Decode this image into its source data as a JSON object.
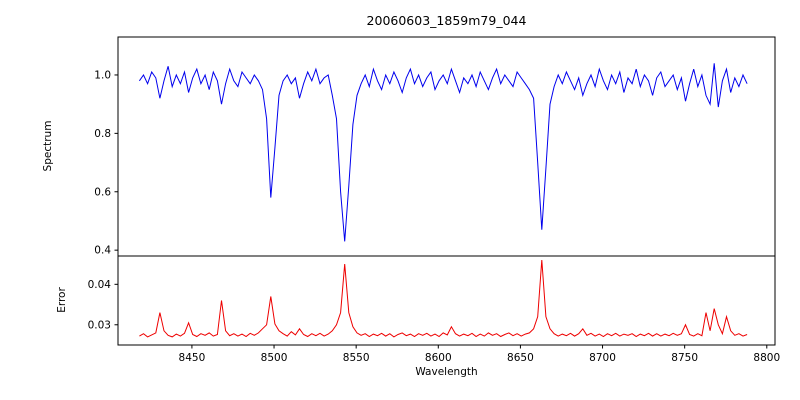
{
  "figure": {
    "title": "20060603_1859m79_044",
    "xlabel": "Wavelength",
    "background": "#ffffff",
    "axis_color": "#000000"
  },
  "chart_data": [
    {
      "type": "line",
      "name": "spectrum",
      "title": "20060603_1859m79_044",
      "ylabel": "Spectrum",
      "color": "#0000ee",
      "grid": false,
      "legend": "none",
      "xlim": [
        8405,
        8805
      ],
      "ylim": [
        0.38,
        1.13
      ],
      "yticks": [
        0.4,
        0.6,
        0.8,
        1.0
      ],
      "ytick_labels": [
        "0.4",
        "0.6",
        "0.8",
        "1.0"
      ],
      "x_start": 8418,
      "x_step": 2.5,
      "values": [
        0.98,
        1.0,
        0.97,
        1.01,
        0.99,
        0.92,
        0.98,
        1.03,
        0.96,
        1.0,
        0.97,
        1.01,
        0.94,
        0.99,
        1.02,
        0.97,
        1.0,
        0.95,
        1.01,
        0.98,
        0.9,
        0.97,
        1.02,
        0.98,
        0.96,
        1.01,
        0.99,
        0.97,
        1.0,
        0.98,
        0.95,
        0.85,
        0.58,
        0.75,
        0.93,
        0.98,
        1.0,
        0.97,
        0.99,
        0.92,
        0.97,
        1.01,
        0.98,
        1.02,
        0.97,
        0.99,
        1.0,
        0.93,
        0.85,
        0.6,
        0.43,
        0.62,
        0.83,
        0.93,
        0.97,
        1.0,
        0.96,
        1.02,
        0.98,
        0.95,
        1.0,
        0.97,
        1.01,
        0.98,
        0.94,
        0.99,
        1.02,
        0.97,
        1.0,
        0.96,
        0.99,
        1.01,
        0.95,
        0.98,
        1.0,
        0.97,
        1.02,
        0.98,
        0.94,
        0.99,
        0.97,
        1.0,
        0.96,
        1.01,
        0.98,
        0.95,
        0.99,
        1.02,
        0.97,
        1.0,
        0.98,
        0.96,
        1.01,
        0.99,
        0.97,
        0.95,
        0.92,
        0.7,
        0.47,
        0.68,
        0.9,
        0.96,
        1.0,
        0.97,
        1.01,
        0.98,
        0.95,
        0.99,
        0.93,
        0.97,
        1.0,
        0.96,
        1.02,
        0.98,
        0.95,
        1.0,
        0.97,
        1.01,
        0.94,
        0.99,
        0.97,
        1.02,
        0.96,
        1.0,
        0.98,
        0.93,
        0.99,
        1.01,
        0.96,
        0.98,
        1.0,
        0.95,
        0.99,
        0.91,
        0.97,
        1.02,
        0.96,
        1.0,
        0.93,
        0.9,
        1.04,
        0.89,
        0.98,
        1.02,
        0.94,
        0.99,
        0.96,
        1.0,
        0.97
      ],
      "absorption_lines": [
        {
          "wavelength": 8498,
          "min_flux": 0.58
        },
        {
          "wavelength": 8542,
          "min_flux": 0.43
        },
        {
          "wavelength": 8662,
          "min_flux": 0.47
        }
      ]
    },
    {
      "type": "line",
      "name": "error",
      "ylabel": "Error",
      "xlabel": "Wavelength",
      "color": "#ee0000",
      "grid": false,
      "legend": "none",
      "xlim": [
        8405,
        8805
      ],
      "ylim": [
        0.025,
        0.047
      ],
      "yticks": [
        0.03,
        0.04
      ],
      "ytick_labels": [
        "0.03",
        "0.04"
      ],
      "xticks": [
        8450,
        8500,
        8550,
        8600,
        8650,
        8700,
        8750,
        8800
      ],
      "xtick_labels": [
        "8450",
        "8500",
        "8550",
        "8600",
        "8650",
        "8700",
        "8750",
        "8800"
      ],
      "x_start": 8418,
      "x_step": 2.5,
      "values": [
        0.0272,
        0.0278,
        0.027,
        0.0275,
        0.028,
        0.033,
        0.0285,
        0.0274,
        0.027,
        0.0277,
        0.0272,
        0.0279,
        0.0305,
        0.0276,
        0.0271,
        0.0278,
        0.0274,
        0.028,
        0.0272,
        0.0276,
        0.036,
        0.0285,
        0.0273,
        0.0278,
        0.0272,
        0.0277,
        0.0271,
        0.0279,
        0.0274,
        0.028,
        0.029,
        0.03,
        0.037,
        0.0302,
        0.0285,
        0.0278,
        0.0272,
        0.0283,
        0.0275,
        0.029,
        0.0276,
        0.0271,
        0.0278,
        0.0273,
        0.0279,
        0.0272,
        0.0277,
        0.0285,
        0.03,
        0.033,
        0.045,
        0.033,
        0.0295,
        0.028,
        0.0274,
        0.0278,
        0.0271,
        0.0277,
        0.0273,
        0.0279,
        0.0272,
        0.0278,
        0.027,
        0.0276,
        0.028,
        0.0273,
        0.0277,
        0.0271,
        0.0278,
        0.0274,
        0.0279,
        0.0272,
        0.0277,
        0.0271,
        0.028,
        0.0275,
        0.0295,
        0.0278,
        0.0272,
        0.0277,
        0.0273,
        0.0279,
        0.0271,
        0.0277,
        0.0272,
        0.028,
        0.0274,
        0.0278,
        0.0271,
        0.0276,
        0.028,
        0.0273,
        0.0278,
        0.0272,
        0.0277,
        0.028,
        0.029,
        0.032,
        0.046,
        0.032,
        0.029,
        0.0278,
        0.0272,
        0.0277,
        0.0273,
        0.0279,
        0.0272,
        0.0278,
        0.029,
        0.0274,
        0.0279,
        0.0272,
        0.0277,
        0.0271,
        0.0278,
        0.0273,
        0.0279,
        0.0272,
        0.0277,
        0.0274,
        0.0278,
        0.0271,
        0.0277,
        0.0273,
        0.0279,
        0.0272,
        0.0278,
        0.0272,
        0.0277,
        0.0273,
        0.0279,
        0.0274,
        0.0278,
        0.03,
        0.0276,
        0.0272,
        0.0278,
        0.0273,
        0.033,
        0.0285,
        0.034,
        0.03,
        0.0278,
        0.032,
        0.0285,
        0.0274,
        0.0278,
        0.0272,
        0.0276
      ]
    }
  ]
}
